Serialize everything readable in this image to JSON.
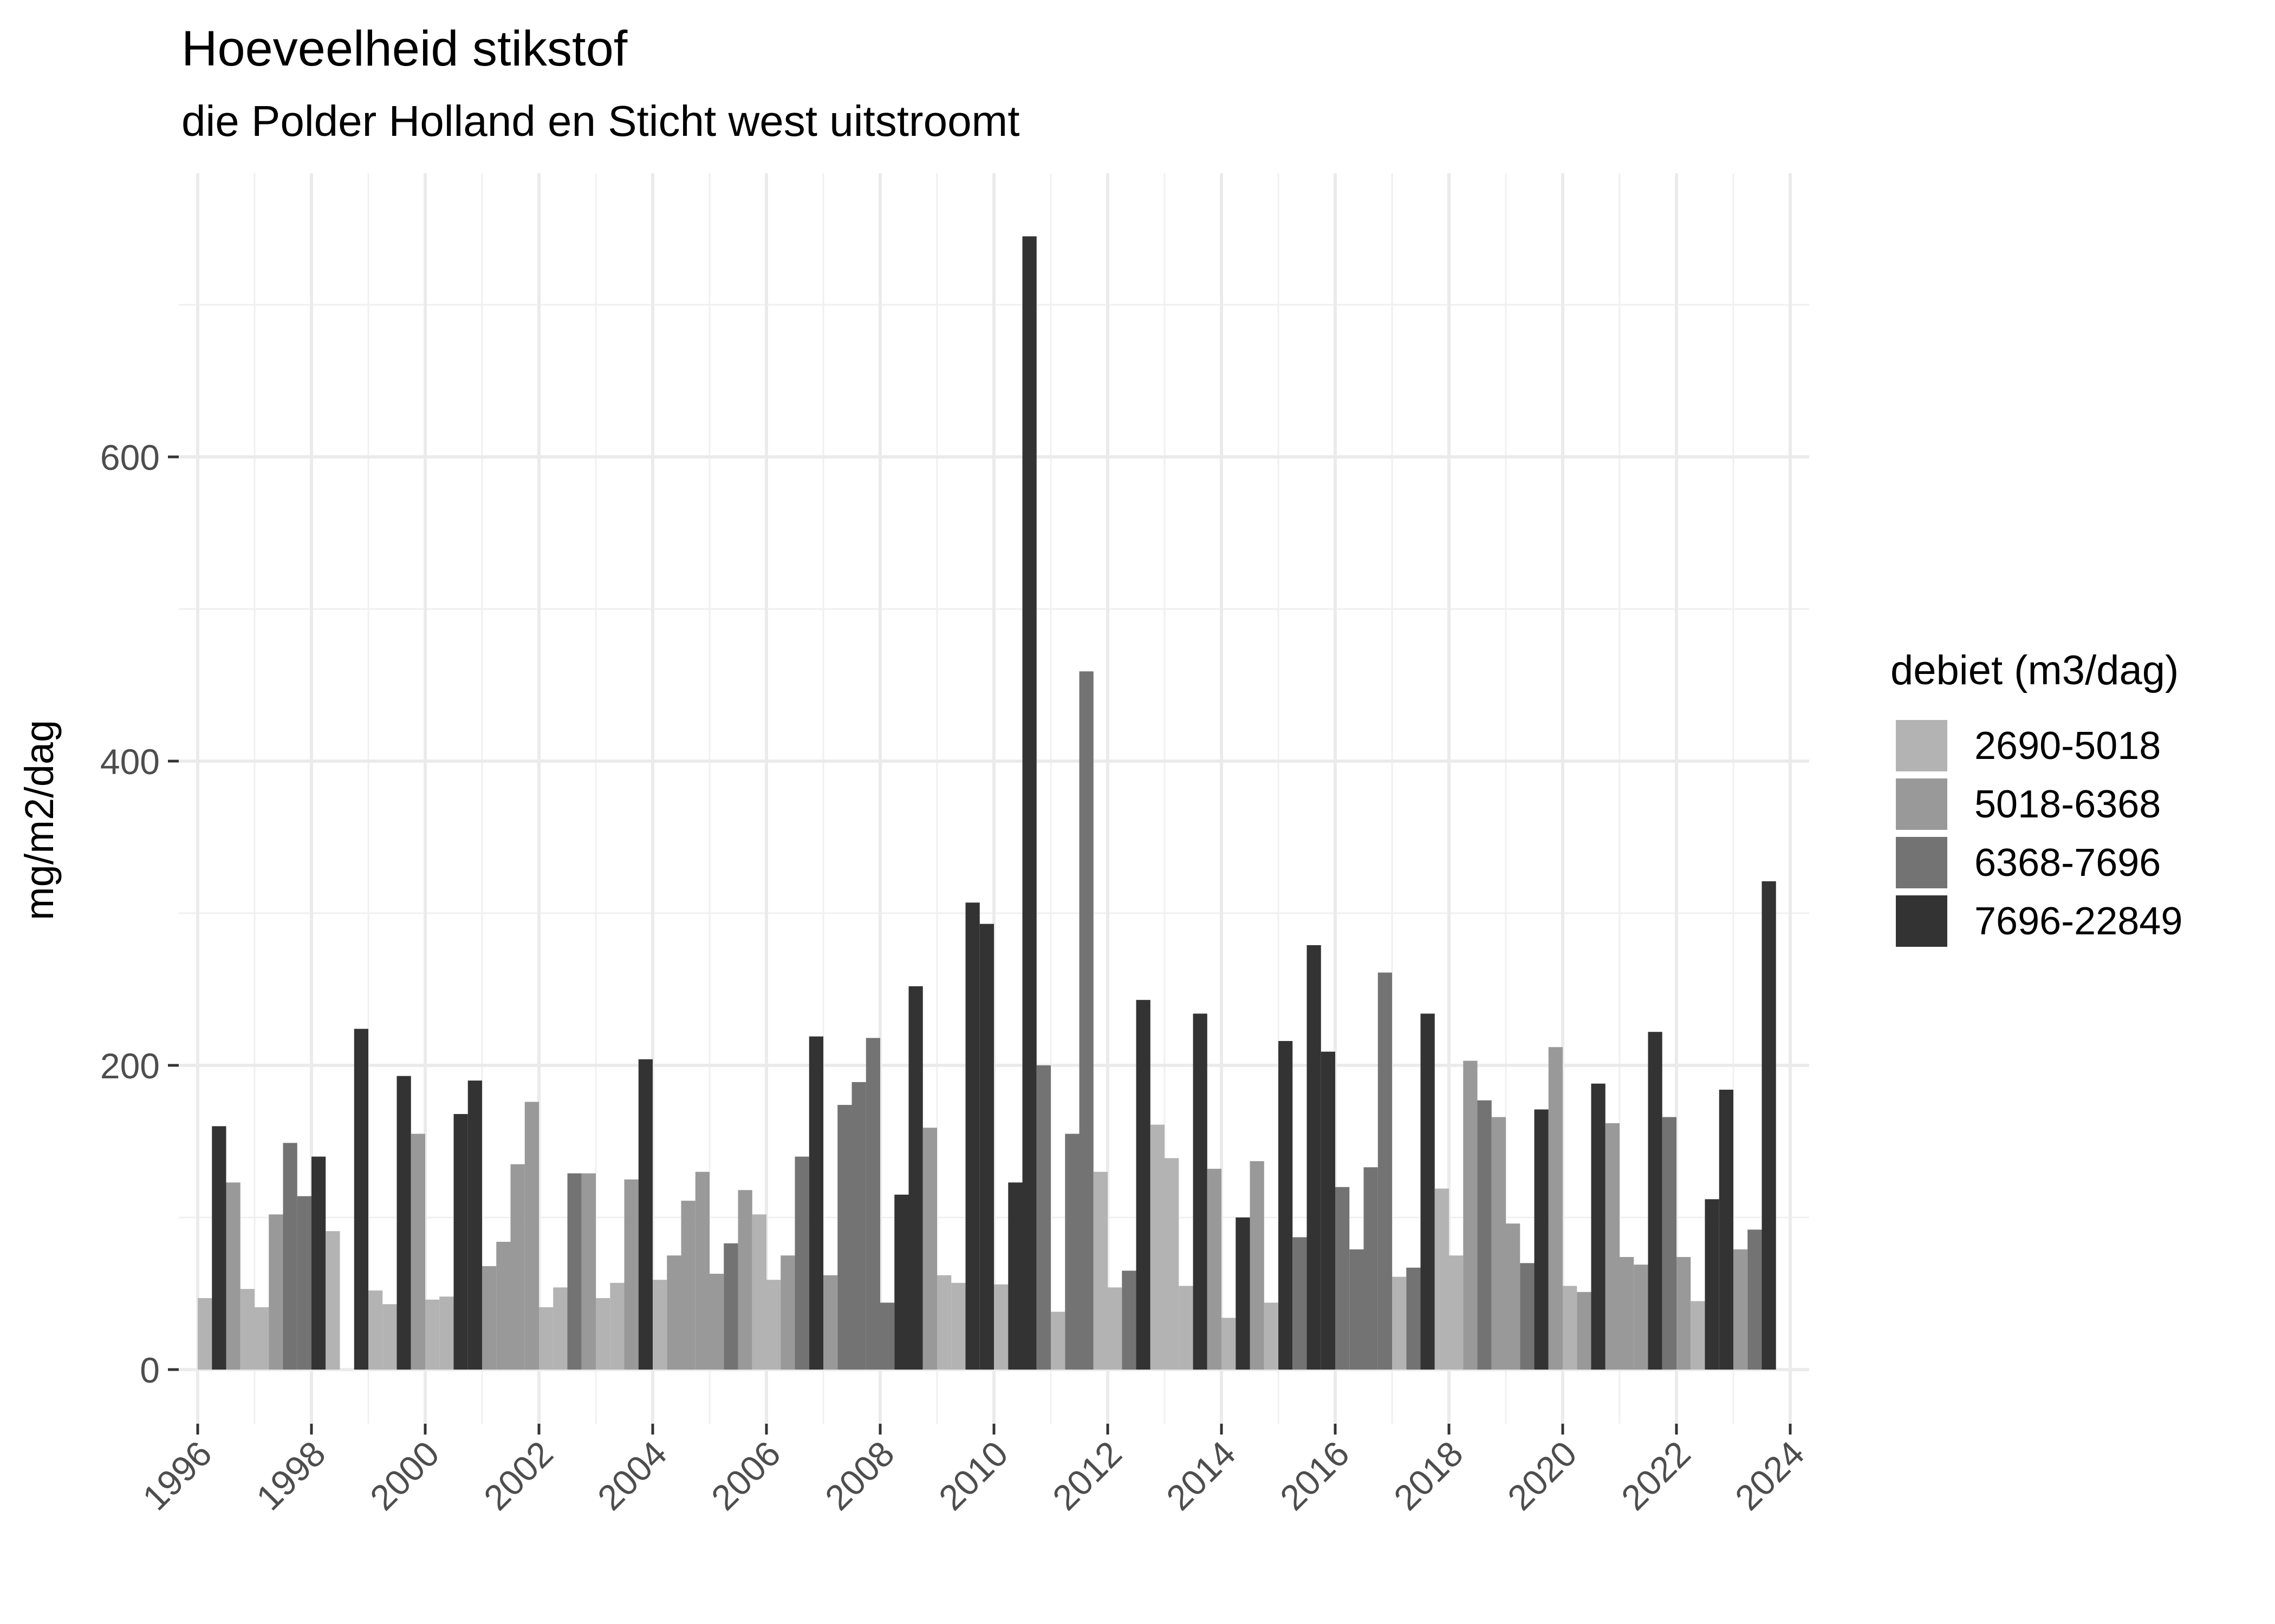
{
  "title": "Hoeveelheid stikstof",
  "subtitle": "die Polder Holland en Sticht west uitstroomt",
  "ylabel": "mg/m2/dag",
  "legend": {
    "title": "debiet (m3/dag)",
    "items": [
      {
        "label": "2690-5018",
        "color": "#b3b3b3"
      },
      {
        "label": "5018-6368",
        "color": "#999999"
      },
      {
        "label": "6368-7696",
        "color": "#737373"
      },
      {
        "label": "7696-22849",
        "color": "#333333"
      }
    ]
  },
  "chart_data": {
    "type": "bar",
    "title": "Hoeveelheid stikstof",
    "subtitle": "die Polder Holland en Sticht west uitstroomt",
    "xlabel": "",
    "ylabel": "mg/m2/dag",
    "ylim": [
      0,
      760
    ],
    "xlim": [
      1996,
      2024
    ],
    "yticks": [
      0,
      200,
      400,
      600
    ],
    "xticks": [
      "1996",
      "1998",
      "2000",
      "2002",
      "2004",
      "2006",
      "2008",
      "2010",
      "2012",
      "2014",
      "2016",
      "2018",
      "2020",
      "2022",
      "2024"
    ],
    "grid": true,
    "legend_position": "right",
    "legend_title": "debiet (m3/dag)",
    "categories_fill": [
      "2690-5018",
      "5018-6368",
      "6368-7696",
      "7696-22849"
    ],
    "bars": [
      {
        "x": 1996.0,
        "y": 47,
        "c": 0
      },
      {
        "x": 1996.25,
        "y": 160,
        "c": 3
      },
      {
        "x": 1996.5,
        "y": 123,
        "c": 1
      },
      {
        "x": 1996.75,
        "y": 53,
        "c": 0
      },
      {
        "x": 1997.0,
        "y": 41,
        "c": 0
      },
      {
        "x": 1997.25,
        "y": 102,
        "c": 1
      },
      {
        "x": 1997.5,
        "y": 149,
        "c": 2
      },
      {
        "x": 1997.75,
        "y": 114,
        "c": 2
      },
      {
        "x": 1998.0,
        "y": 140,
        "c": 3
      },
      {
        "x": 1998.25,
        "y": 91,
        "c": 0
      },
      {
        "x": 1998.75,
        "y": 224,
        "c": 3
      },
      {
        "x": 1999.0,
        "y": 52,
        "c": 0
      },
      {
        "x": 1999.25,
        "y": 43,
        "c": 0
      },
      {
        "x": 1999.5,
        "y": 193,
        "c": 3
      },
      {
        "x": 1999.75,
        "y": 155,
        "c": 1
      },
      {
        "x": 2000.0,
        "y": 46,
        "c": 0
      },
      {
        "x": 2000.25,
        "y": 48,
        "c": 0
      },
      {
        "x": 2000.5,
        "y": 168,
        "c": 3
      },
      {
        "x": 2000.75,
        "y": 190,
        "c": 3
      },
      {
        "x": 2001.0,
        "y": 68,
        "c": 1
      },
      {
        "x": 2001.25,
        "y": 84,
        "c": 1
      },
      {
        "x": 2001.5,
        "y": 135,
        "c": 1
      },
      {
        "x": 2001.75,
        "y": 176,
        "c": 1
      },
      {
        "x": 2002.0,
        "y": 41,
        "c": 0
      },
      {
        "x": 2002.25,
        "y": 54,
        "c": 0
      },
      {
        "x": 2002.5,
        "y": 129,
        "c": 2
      },
      {
        "x": 2002.75,
        "y": 129,
        "c": 1
      },
      {
        "x": 2003.0,
        "y": 47,
        "c": 0
      },
      {
        "x": 2003.25,
        "y": 57,
        "c": 0
      },
      {
        "x": 2003.5,
        "y": 125,
        "c": 1
      },
      {
        "x": 2003.75,
        "y": 204,
        "c": 3
      },
      {
        "x": 2004.0,
        "y": 59,
        "c": 0
      },
      {
        "x": 2004.25,
        "y": 75,
        "c": 1
      },
      {
        "x": 2004.5,
        "y": 111,
        "c": 1
      },
      {
        "x": 2004.75,
        "y": 130,
        "c": 1
      },
      {
        "x": 2005.0,
        "y": 63,
        "c": 1
      },
      {
        "x": 2005.25,
        "y": 83,
        "c": 2
      },
      {
        "x": 2005.5,
        "y": 118,
        "c": 1
      },
      {
        "x": 2005.75,
        "y": 102,
        "c": 0
      },
      {
        "x": 2006.0,
        "y": 59,
        "c": 0
      },
      {
        "x": 2006.25,
        "y": 75,
        "c": 1
      },
      {
        "x": 2006.5,
        "y": 140,
        "c": 2
      },
      {
        "x": 2006.75,
        "y": 219,
        "c": 3
      },
      {
        "x": 2007.0,
        "y": 62,
        "c": 1
      },
      {
        "x": 2007.25,
        "y": 174,
        "c": 2
      },
      {
        "x": 2007.5,
        "y": 189,
        "c": 2
      },
      {
        "x": 2007.75,
        "y": 218,
        "c": 2
      },
      {
        "x": 2008.0,
        "y": 44,
        "c": 2
      },
      {
        "x": 2008.25,
        "y": 115,
        "c": 3
      },
      {
        "x": 2008.5,
        "y": 252,
        "c": 3
      },
      {
        "x": 2008.75,
        "y": 159,
        "c": 1
      },
      {
        "x": 2009.0,
        "y": 62,
        "c": 0
      },
      {
        "x": 2009.25,
        "y": 57,
        "c": 0
      },
      {
        "x": 2009.5,
        "y": 307,
        "c": 3
      },
      {
        "x": 2009.75,
        "y": 293,
        "c": 3
      },
      {
        "x": 2010.0,
        "y": 56,
        "c": 0
      },
      {
        "x": 2010.25,
        "y": 123,
        "c": 3
      },
      {
        "x": 2010.5,
        "y": 745,
        "c": 3
      },
      {
        "x": 2010.75,
        "y": 200,
        "c": 2
      },
      {
        "x": 2011.0,
        "y": 38,
        "c": 0
      },
      {
        "x": 2011.25,
        "y": 155,
        "c": 2
      },
      {
        "x": 2011.5,
        "y": 459,
        "c": 2
      },
      {
        "x": 2011.75,
        "y": 130,
        "c": 0
      },
      {
        "x": 2012.0,
        "y": 54,
        "c": 0
      },
      {
        "x": 2012.25,
        "y": 65,
        "c": 2
      },
      {
        "x": 2012.5,
        "y": 243,
        "c": 3
      },
      {
        "x": 2012.75,
        "y": 161,
        "c": 0
      },
      {
        "x": 2013.0,
        "y": 139,
        "c": 0
      },
      {
        "x": 2013.25,
        "y": 55,
        "c": 0
      },
      {
        "x": 2013.5,
        "y": 234,
        "c": 3
      },
      {
        "x": 2013.75,
        "y": 132,
        "c": 1
      },
      {
        "x": 2014.0,
        "y": 34,
        "c": 0
      },
      {
        "x": 2014.25,
        "y": 100,
        "c": 3
      },
      {
        "x": 2014.5,
        "y": 137,
        "c": 1
      },
      {
        "x": 2014.75,
        "y": 44,
        "c": 0
      },
      {
        "x": 2015.0,
        "y": 216,
        "c": 3
      },
      {
        "x": 2015.25,
        "y": 87,
        "c": 2
      },
      {
        "x": 2015.5,
        "y": 279,
        "c": 3
      },
      {
        "x": 2015.75,
        "y": 209,
        "c": 3
      },
      {
        "x": 2016.0,
        "y": 120,
        "c": 2
      },
      {
        "x": 2016.25,
        "y": 79,
        "c": 2
      },
      {
        "x": 2016.5,
        "y": 133,
        "c": 2
      },
      {
        "x": 2016.75,
        "y": 261,
        "c": 2
      },
      {
        "x": 2017.0,
        "y": 61,
        "c": 0
      },
      {
        "x": 2017.25,
        "y": 67,
        "c": 2
      },
      {
        "x": 2017.5,
        "y": 234,
        "c": 3
      },
      {
        "x": 2017.75,
        "y": 119,
        "c": 0
      },
      {
        "x": 2018.0,
        "y": 75,
        "c": 0
      },
      {
        "x": 2018.25,
        "y": 203,
        "c": 1
      },
      {
        "x": 2018.5,
        "y": 177,
        "c": 2
      },
      {
        "x": 2018.75,
        "y": 166,
        "c": 1
      },
      {
        "x": 2019.0,
        "y": 96,
        "c": 1
      },
      {
        "x": 2019.25,
        "y": 70,
        "c": 2
      },
      {
        "x": 2019.5,
        "y": 171,
        "c": 3
      },
      {
        "x": 2019.75,
        "y": 212,
        "c": 1
      },
      {
        "x": 2020.0,
        "y": 55,
        "c": 0
      },
      {
        "x": 2020.25,
        "y": 51,
        "c": 1
      },
      {
        "x": 2020.5,
        "y": 188,
        "c": 3
      },
      {
        "x": 2020.75,
        "y": 162,
        "c": 1
      },
      {
        "x": 2021.0,
        "y": 74,
        "c": 1
      },
      {
        "x": 2021.25,
        "y": 69,
        "c": 1
      },
      {
        "x": 2021.5,
        "y": 222,
        "c": 3
      },
      {
        "x": 2021.75,
        "y": 166,
        "c": 2
      },
      {
        "x": 2022.0,
        "y": 74,
        "c": 1
      },
      {
        "x": 2022.25,
        "y": 45,
        "c": 0
      },
      {
        "x": 2022.5,
        "y": 112,
        "c": 3
      },
      {
        "x": 2022.75,
        "y": 184,
        "c": 3
      },
      {
        "x": 2023.0,
        "y": 79,
        "c": 1
      },
      {
        "x": 2023.25,
        "y": 92,
        "c": 2
      },
      {
        "x": 2023.5,
        "y": 321,
        "c": 3
      }
    ]
  }
}
